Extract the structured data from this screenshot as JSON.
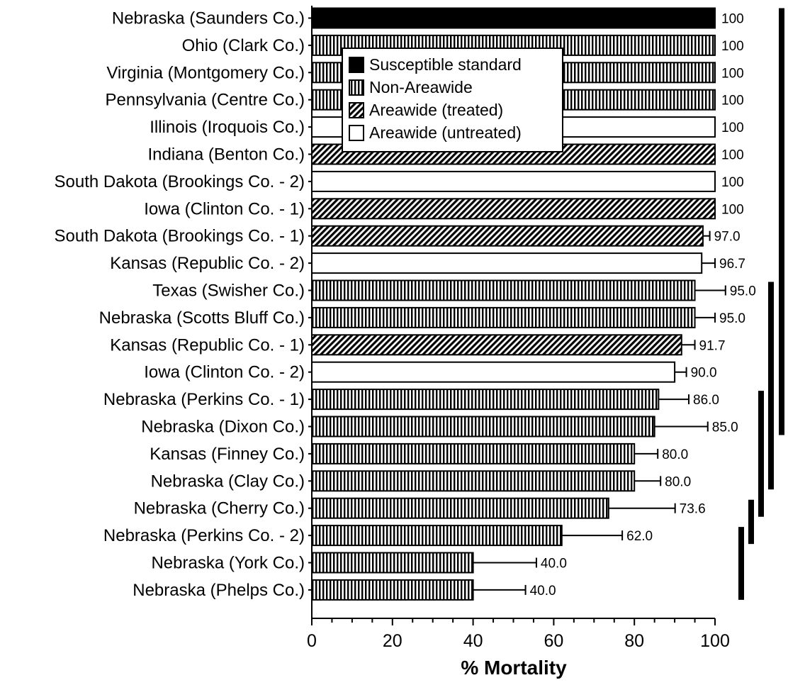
{
  "chart_data": {
    "type": "bar",
    "orientation": "horizontal",
    "title": "",
    "xlabel": "% Mortality",
    "ylabel": "",
    "xlim": [
      0,
      100
    ],
    "xticks": [
      "0",
      "20",
      "40",
      "60",
      "80",
      "100"
    ],
    "legend": {
      "placement": "top-left",
      "entries": [
        {
          "key": "susceptible",
          "label": "Susceptible standard"
        },
        {
          "key": "non_areawide",
          "label": "Non-Areawide"
        },
        {
          "key": "areawide_treated",
          "label": "Areawide (treated)"
        },
        {
          "key": "areawide_untreated",
          "label": "Areawide (untreated)"
        }
      ]
    },
    "categories": [
      "Nebraska (Saunders Co.)",
      "Ohio (Clark Co.)",
      "Virginia (Montgomery Co.)",
      "Pennsylvania (Centre Co.)",
      "Illinois (Iroquois Co.)",
      "Indiana (Benton Co.)",
      "South Dakota (Brookings Co. - 2)",
      "Iowa (Clinton Co. - 1)",
      "South Dakota (Brookings Co. - 1)",
      "Kansas (Republic Co. - 2)",
      "Texas (Swisher Co.)",
      "Nebraska (Scotts Bluff Co.)",
      "Kansas (Republic Co. - 1)",
      "Iowa (Clinton Co. - 2)",
      "Nebraska (Perkins Co. - 1)",
      "Nebraska (Dixon Co.)",
      "Kansas (Finney Co.)",
      "Nebraska (Clay Co.)",
      "Nebraska (Cherry Co.)",
      "Nebraska (Perkins Co. - 2)",
      "Nebraska (York Co.)",
      "Nebraska (Phelps Co.)"
    ],
    "values": [
      100,
      100,
      100,
      100,
      100,
      100,
      100,
      100,
      97.0,
      96.7,
      95.0,
      95.0,
      91.7,
      90.0,
      86.0,
      85.0,
      80.0,
      80.0,
      73.6,
      62.0,
      40.0,
      40.0
    ],
    "value_labels": [
      "100",
      "100",
      "100",
      "100",
      "100",
      "100",
      "100",
      "100",
      "97.0",
      "96.7",
      "95.0",
      "95.0",
      "91.7",
      "90.0",
      "86.0",
      "85.0",
      "80.0",
      "80.0",
      "73.6",
      "62.0",
      "40.0",
      "40.0"
    ],
    "errors": [
      0,
      0,
      0,
      0,
      0,
      0,
      0,
      0,
      1.7,
      3.3,
      7.6,
      5.0,
      3.3,
      2.9,
      7.5,
      13.2,
      5.8,
      6.5,
      16.5,
      15.0,
      15.7,
      13.0
    ],
    "groups": [
      "susceptible",
      "non_areawide",
      "non_areawide",
      "non_areawide",
      "areawide_untreated",
      "areawide_treated",
      "areawide_untreated",
      "areawide_treated",
      "areawide_treated",
      "areawide_untreated",
      "non_areawide",
      "non_areawide",
      "areawide_treated",
      "areawide_untreated",
      "non_areawide",
      "non_areawide",
      "non_areawide",
      "non_areawide",
      "non_areawide",
      "non_areawide",
      "non_areawide",
      "non_areawide"
    ],
    "significance_groups": [
      {
        "from": 0,
        "to": 15
      },
      {
        "from": 10,
        "to": 17
      },
      {
        "from": 14,
        "to": 18
      },
      {
        "from": 18,
        "to": 19
      },
      {
        "from": 19,
        "to": 21
      }
    ],
    "grid": false
  }
}
